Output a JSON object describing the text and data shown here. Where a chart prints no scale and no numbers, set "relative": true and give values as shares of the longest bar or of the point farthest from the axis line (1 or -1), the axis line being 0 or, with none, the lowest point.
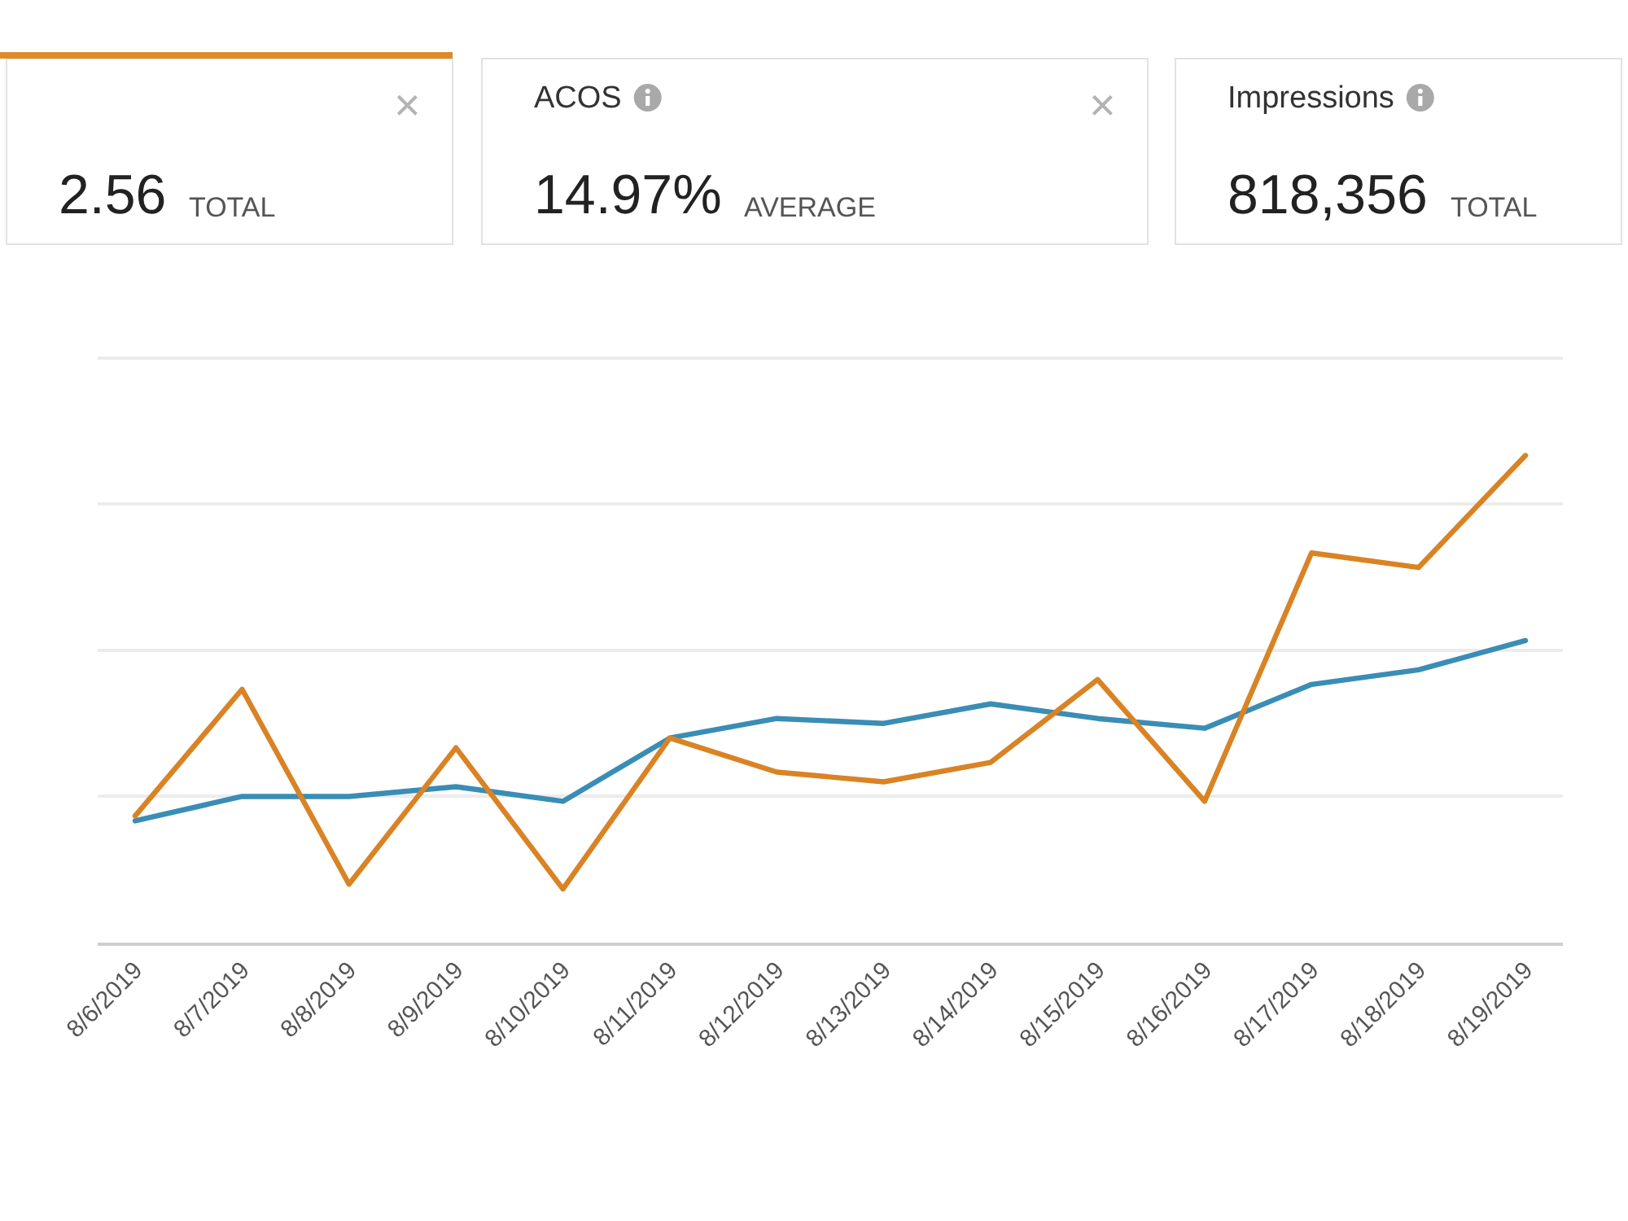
{
  "chart_data": [
    {
      "type": "other",
      "color": "#dd8a2b",
      "annotations": [
        "2.56",
        "TOTAL",
        "×"
      ]
    },
    {
      "type": "other",
      "title": "ACOS",
      "annotations": [
        "14.97%",
        "AVERAGE",
        "×"
      ]
    },
    {
      "type": "other",
      "title": "Impressions",
      "annotations": [
        "818,356",
        "TOTAL"
      ]
    },
    {
      "type": "line",
      "relative": true,
      "grid": "y",
      "categories": [
        "8/6/2019",
        "8/7/2019",
        "8/8/2019",
        "8/9/2019",
        "8/10/2019",
        "8/11/2019",
        "8/12/2019",
        "8/13/2019",
        "8/14/2019",
        "8/15/2019",
        "8/16/2019",
        "8/17/2019",
        "8/18/2019",
        "8/19/2019"
      ],
      "series": [
        {
          "color": "#3a8db5",
          "values": [
            0.25,
            0.3,
            0.3,
            0.32,
            0.29,
            0.42,
            0.46,
            0.45,
            0.49,
            0.46,
            0.44,
            0.53,
            0.56,
            0.62
          ]
        },
        {
          "color": "#d98324",
          "values": [
            0.26,
            0.52,
            0.12,
            0.4,
            0.11,
            0.42,
            0.35,
            0.33,
            0.37,
            0.54,
            0.29,
            0.8,
            0.77,
            1.0
          ]
        }
      ]
    }
  ]
}
